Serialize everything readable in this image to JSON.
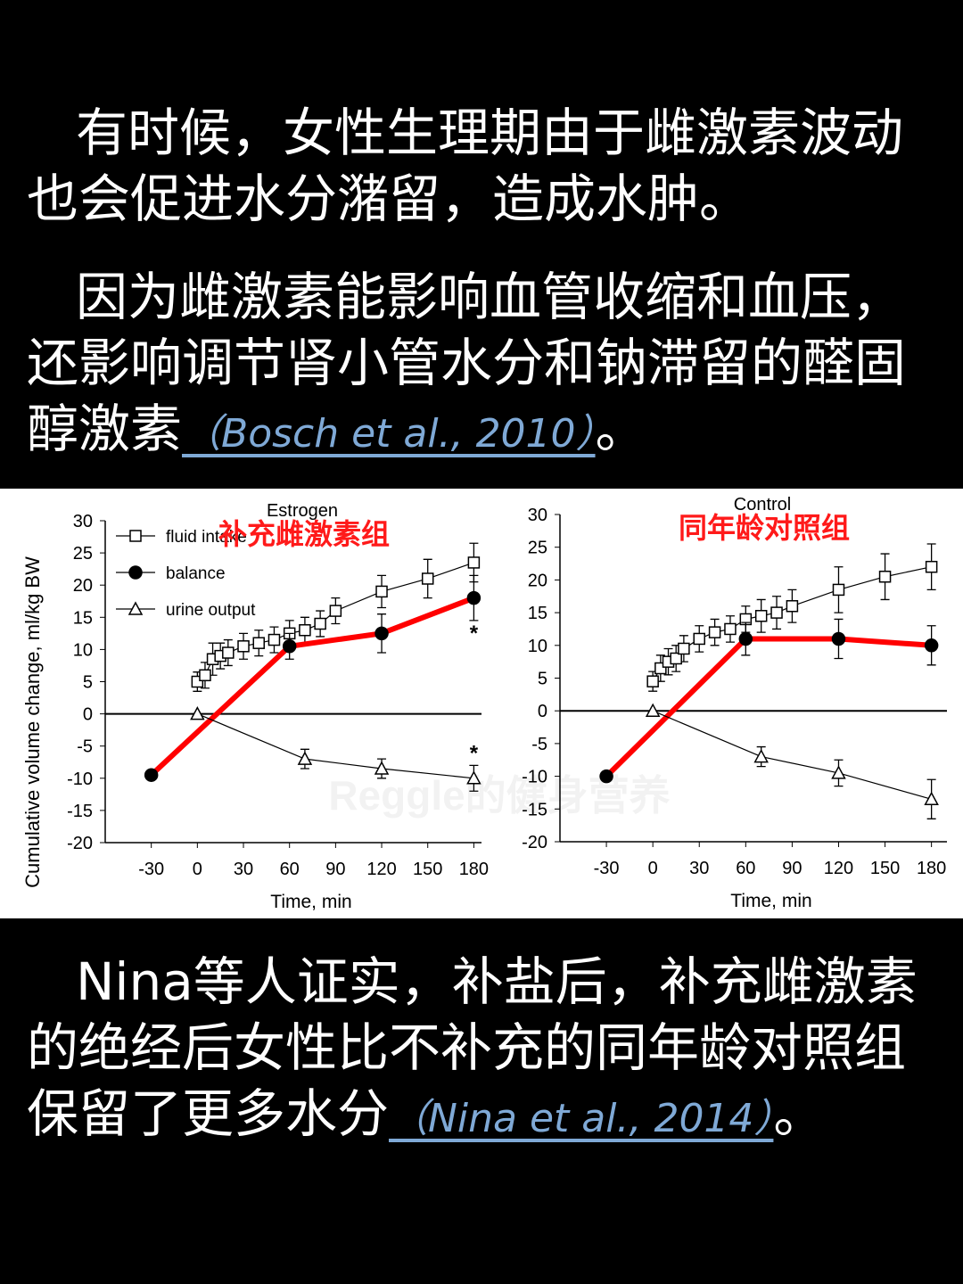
{
  "paragraphs": [
    {
      "text": "有时候，女性生理期由于雌激素波动也会促进水分潴留，造成水肿。"
    },
    {
      "text": "因为雌激素能影响血管收缩和血压，还影响调节肾小管水分和钠滞留的醛固醇激素",
      "citation": "（Bosch et al., 2010）",
      "tail": "。"
    },
    {
      "text": "Nina等人证实，补盐后，补充雌激素的绝经后女性比不补充的同年龄对照组保留了更多水分",
      "citation": "（Nina et al., 2014）",
      "tail": "。"
    }
  ],
  "watermark": "Reggle的健身营养",
  "y_label": "Cumulative volume change, ml/kg BW",
  "chart_data": [
    {
      "type": "line",
      "title": "Estrogen",
      "group_label": "补充雌激素组",
      "xlabel": "Time, min",
      "legend": true,
      "xlim": [
        -60,
        185
      ],
      "ylim": [
        -20,
        30
      ],
      "xticks": [
        -30,
        0,
        30,
        60,
        90,
        120,
        150,
        180
      ],
      "yticks": [
        -20,
        -15,
        -10,
        -5,
        0,
        5,
        10,
        15,
        20,
        25,
        30
      ],
      "annotations": [
        "*",
        "*"
      ],
      "series": [
        {
          "name": "fluid intake",
          "marker": "square",
          "color": "#000000",
          "line_color": "#000000",
          "x": [
            0,
            5,
            10,
            15,
            20,
            30,
            40,
            50,
            60,
            70,
            80,
            90,
            120,
            150,
            180
          ],
          "values": [
            5,
            6,
            8.5,
            9,
            9.5,
            10.5,
            11,
            11.5,
            12.5,
            13,
            14,
            16,
            19,
            21,
            23.5
          ],
          "errors": [
            1.5,
            2,
            2.5,
            2,
            2,
            2,
            2,
            2,
            2,
            2,
            2,
            2,
            2.5,
            3,
            3
          ]
        },
        {
          "name": "balance",
          "marker": "circle",
          "color": "#000000",
          "line_color": "#ff0000",
          "x": [
            -30,
            60,
            120,
            180
          ],
          "values": [
            -9.5,
            10.5,
            12.5,
            18
          ],
          "errors": [
            0,
            2,
            3,
            3.5
          ]
        },
        {
          "name": "urine output",
          "marker": "triangle",
          "color": "#000000",
          "line_color": "#000000",
          "x": [
            0,
            70,
            120,
            180
          ],
          "values": [
            0,
            -7,
            -8.5,
            -10
          ],
          "errors": [
            0,
            1.5,
            1.5,
            2
          ]
        }
      ]
    },
    {
      "type": "line",
      "title": "Control",
      "group_label": "同年龄对照组",
      "xlabel": "Time, min",
      "legend": false,
      "xlim": [
        -60,
        190
      ],
      "ylim": [
        -20,
        30
      ],
      "xticks": [
        -30,
        0,
        30,
        60,
        90,
        120,
        150,
        180
      ],
      "yticks": [
        -20,
        -15,
        -10,
        -5,
        0,
        5,
        10,
        15,
        20,
        25,
        30
      ],
      "series": [
        {
          "name": "fluid intake",
          "marker": "square",
          "color": "#000000",
          "line_color": "#000000",
          "x": [
            0,
            5,
            10,
            15,
            20,
            30,
            40,
            50,
            60,
            70,
            80,
            90,
            120,
            150,
            180
          ],
          "values": [
            4.5,
            6.5,
            7.5,
            8,
            9.5,
            11,
            12,
            12.5,
            14,
            14.5,
            15,
            16,
            18.5,
            20.5,
            22
          ],
          "errors": [
            1.5,
            2,
            2,
            2,
            2,
            2,
            2,
            2,
            2,
            2.5,
            2.5,
            2.5,
            3.5,
            3.5,
            3.5
          ]
        },
        {
          "name": "balance",
          "marker": "circle",
          "color": "#000000",
          "line_color": "#ff0000",
          "x": [
            -30,
            60,
            120,
            180
          ],
          "values": [
            -10,
            11,
            11,
            10
          ],
          "errors": [
            0,
            2.5,
            3,
            3
          ]
        },
        {
          "name": "urine output",
          "marker": "triangle",
          "color": "#000000",
          "line_color": "#000000",
          "x": [
            0,
            70,
            120,
            180
          ],
          "values": [
            0,
            -7,
            -9.5,
            -13.5
          ],
          "errors": [
            0,
            1.5,
            2,
            3
          ]
        }
      ]
    }
  ]
}
